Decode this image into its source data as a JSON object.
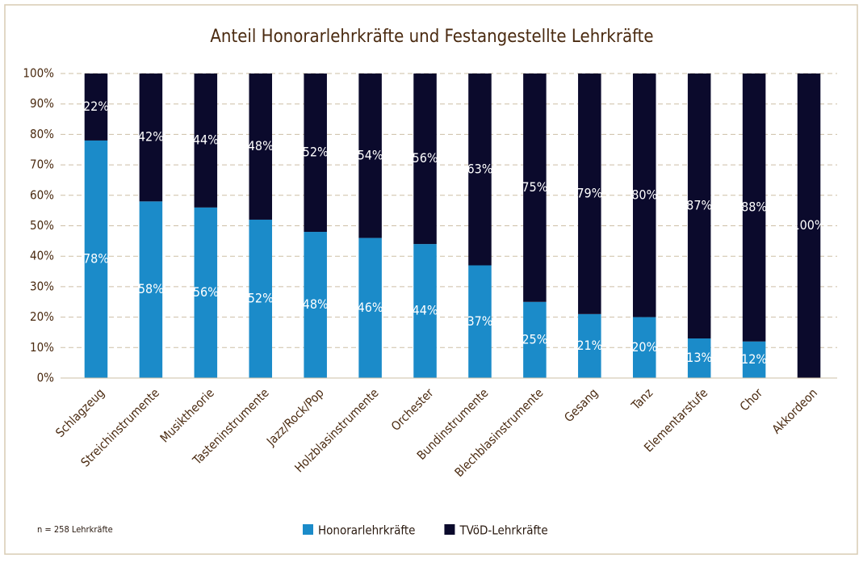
{
  "chart_data": {
    "type": "stacked_bar",
    "title": "Anteil  Honorarlehrkräfte  und Festangestellte Lehrkräfte",
    "annotation": "n = 258 Lehrkräfte",
    "categories": [
      "Schlagzeug",
      "Streichinstrumente",
      "Musiktheorie",
      "Tasteninstrumente",
      "Jazz/Rock/Pop",
      "Holzblasinstrumente",
      "Orchester",
      "Bundinstrumente",
      "Blechblasinstrumente",
      "Gesang",
      "Tanz",
      "Elementarstufe",
      "Chor",
      "Akkordeon"
    ],
    "series": [
      {
        "name": "Honorarlehrkräfte",
        "color": "#1b8bc9",
        "values": [
          78,
          58,
          56,
          52,
          48,
          46,
          44,
          37,
          25,
          21,
          20,
          13,
          12,
          0
        ],
        "value_labels": [
          "78%",
          "58%",
          "56%",
          "52%",
          "48%",
          "46%",
          "44%",
          "37%",
          "25%",
          "21%",
          "20%",
          "13%",
          "12%",
          null
        ]
      },
      {
        "name": "TVöD-Lehrkräfte",
        "color": "#0b0a2c",
        "values": [
          22,
          42,
          44,
          48,
          52,
          54,
          56,
          63,
          75,
          79,
          80,
          87,
          88,
          100
        ],
        "value_labels": [
          "22%",
          "42%",
          "44%",
          "48%",
          "52%",
          "54%",
          "56%",
          "63%",
          "75%",
          "79%",
          "80%",
          "87%",
          "88%",
          "100%"
        ]
      }
    ],
    "ylim": [
      0,
      100
    ],
    "yticks": [
      {
        "value": 0,
        "label": "0%"
      },
      {
        "value": 10,
        "label": "10%"
      },
      {
        "value": 20,
        "label": "20%"
      },
      {
        "value": 30,
        "label": "30%"
      },
      {
        "value": 40,
        "label": "40%"
      },
      {
        "value": 50,
        "label": "50%"
      },
      {
        "value": 60,
        "label": "60%"
      },
      {
        "value": 70,
        "label": "70%"
      },
      {
        "value": 80,
        "label": "80%"
      },
      {
        "value": 90,
        "label": "90%"
      },
      {
        "value": 100,
        "label": "100%"
      }
    ],
    "grid": true,
    "legend": "bottom"
  }
}
